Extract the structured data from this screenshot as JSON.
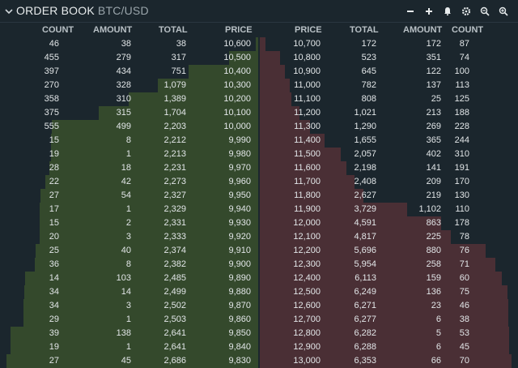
{
  "header": {
    "title": "ORDER BOOK",
    "pair": "BTC/USD"
  },
  "icons": [
    "minus-icon",
    "plus-icon",
    "bell-icon",
    "gear-icon",
    "zoom-out-icon",
    "zoom-in-icon"
  ],
  "columns": {
    "bids": [
      "COUNT",
      "AMOUNT",
      "TOTAL",
      "PRICE"
    ],
    "asks": [
      "PRICE",
      "TOTAL",
      "AMOUNT",
      "COUNT"
    ]
  },
  "colors": {
    "bid_depth": "#34492c",
    "ask_depth": "#4a2f35",
    "background": "#1b262d"
  },
  "max_total": {
    "bids": 2686,
    "asks": 6353
  },
  "bids": [
    {
      "count": "46",
      "amount": "38",
      "total": "38",
      "price": "10,600",
      "total_value": 38
    },
    {
      "count": "455",
      "amount": "279",
      "total": "317",
      "price": "10,500",
      "total_value": 317
    },
    {
      "count": "397",
      "amount": "434",
      "total": "751",
      "price": "10,400",
      "total_value": 751
    },
    {
      "count": "270",
      "amount": "328",
      "total": "1,079",
      "price": "10,300",
      "total_value": 1079
    },
    {
      "count": "358",
      "amount": "310",
      "total": "1,389",
      "price": "10,200",
      "total_value": 1389
    },
    {
      "count": "375",
      "amount": "315",
      "total": "1,704",
      "price": "10,100",
      "total_value": 1704
    },
    {
      "count": "555",
      "amount": "499",
      "total": "2,203",
      "price": "10,000",
      "total_value": 2203
    },
    {
      "count": "15",
      "amount": "8",
      "total": "2,212",
      "price": "9,990",
      "total_value": 2212
    },
    {
      "count": "19",
      "amount": "1",
      "total": "2,213",
      "price": "9,980",
      "total_value": 2213
    },
    {
      "count": "28",
      "amount": "18",
      "total": "2,231",
      "price": "9,970",
      "total_value": 2231
    },
    {
      "count": "22",
      "amount": "42",
      "total": "2,273",
      "price": "9,960",
      "total_value": 2273
    },
    {
      "count": "27",
      "amount": "54",
      "total": "2,327",
      "price": "9,950",
      "total_value": 2327
    },
    {
      "count": "17",
      "amount": "1",
      "total": "2,329",
      "price": "9,940",
      "total_value": 2329
    },
    {
      "count": "15",
      "amount": "2",
      "total": "2,331",
      "price": "9,930",
      "total_value": 2331
    },
    {
      "count": "20",
      "amount": "3",
      "total": "2,333",
      "price": "9,920",
      "total_value": 2333
    },
    {
      "count": "25",
      "amount": "40",
      "total": "2,374",
      "price": "9,910",
      "total_value": 2374
    },
    {
      "count": "36",
      "amount": "8",
      "total": "2,382",
      "price": "9,900",
      "total_value": 2382
    },
    {
      "count": "14",
      "amount": "103",
      "total": "2,485",
      "price": "9,890",
      "total_value": 2485
    },
    {
      "count": "34",
      "amount": "14",
      "total": "2,499",
      "price": "9,880",
      "total_value": 2499
    },
    {
      "count": "34",
      "amount": "3",
      "total": "2,502",
      "price": "9,870",
      "total_value": 2502
    },
    {
      "count": "29",
      "amount": "1",
      "total": "2,503",
      "price": "9,860",
      "total_value": 2503
    },
    {
      "count": "39",
      "amount": "138",
      "total": "2,641",
      "price": "9,850",
      "total_value": 2641
    },
    {
      "count": "19",
      "amount": "1",
      "total": "2,641",
      "price": "9,840",
      "total_value": 2641
    },
    {
      "count": "27",
      "amount": "45",
      "total": "2,686",
      "price": "9,830",
      "total_value": 2686
    }
  ],
  "asks": [
    {
      "price": "10,700",
      "total": "172",
      "amount": "172",
      "count": "87",
      "total_value": 172
    },
    {
      "price": "10,800",
      "total": "523",
      "amount": "351",
      "count": "74",
      "total_value": 523
    },
    {
      "price": "10,900",
      "total": "645",
      "amount": "122",
      "count": "100",
      "total_value": 645
    },
    {
      "price": "11,000",
      "total": "782",
      "amount": "137",
      "count": "113",
      "total_value": 782
    },
    {
      "price": "11,100",
      "total": "808",
      "amount": "25",
      "count": "125",
      "total_value": 808
    },
    {
      "price": "11,200",
      "total": "1,021",
      "amount": "213",
      "count": "188",
      "total_value": 1021
    },
    {
      "price": "11,300",
      "total": "1,290",
      "amount": "269",
      "count": "228",
      "total_value": 1290
    },
    {
      "price": "11,400",
      "total": "1,655",
      "amount": "365",
      "count": "244",
      "total_value": 1655
    },
    {
      "price": "11,500",
      "total": "2,057",
      "amount": "402",
      "count": "310",
      "total_value": 2057
    },
    {
      "price": "11,600",
      "total": "2,198",
      "amount": "141",
      "count": "191",
      "total_value": 2198
    },
    {
      "price": "11,700",
      "total": "2,408",
      "amount": "209",
      "count": "170",
      "total_value": 2408
    },
    {
      "price": "11,800",
      "total": "2,627",
      "amount": "219",
      "count": "130",
      "total_value": 2627
    },
    {
      "price": "11,900",
      "total": "3,729",
      "amount": "1,102",
      "count": "110",
      "total_value": 3729
    },
    {
      "price": "12,000",
      "total": "4,591",
      "amount": "863",
      "count": "178",
      "total_value": 4591
    },
    {
      "price": "12,100",
      "total": "4,817",
      "amount": "225",
      "count": "78",
      "total_value": 4817
    },
    {
      "price": "12,200",
      "total": "5,696",
      "amount": "880",
      "count": "76",
      "total_value": 5696
    },
    {
      "price": "12,300",
      "total": "5,954",
      "amount": "258",
      "count": "71",
      "total_value": 5954
    },
    {
      "price": "12,400",
      "total": "6,113",
      "amount": "159",
      "count": "60",
      "total_value": 6113
    },
    {
      "price": "12,500",
      "total": "6,249",
      "amount": "136",
      "count": "75",
      "total_value": 6249
    },
    {
      "price": "12,600",
      "total": "6,271",
      "amount": "23",
      "count": "46",
      "total_value": 6271
    },
    {
      "price": "12,700",
      "total": "6,277",
      "amount": "6",
      "count": "38",
      "total_value": 6277
    },
    {
      "price": "12,800",
      "total": "6,282",
      "amount": "5",
      "count": "53",
      "total_value": 6282
    },
    {
      "price": "12,900",
      "total": "6,288",
      "amount": "6",
      "count": "45",
      "total_value": 6288
    },
    {
      "price": "13,000",
      "total": "6,353",
      "amount": "66",
      "count": "70",
      "total_value": 6353
    }
  ]
}
